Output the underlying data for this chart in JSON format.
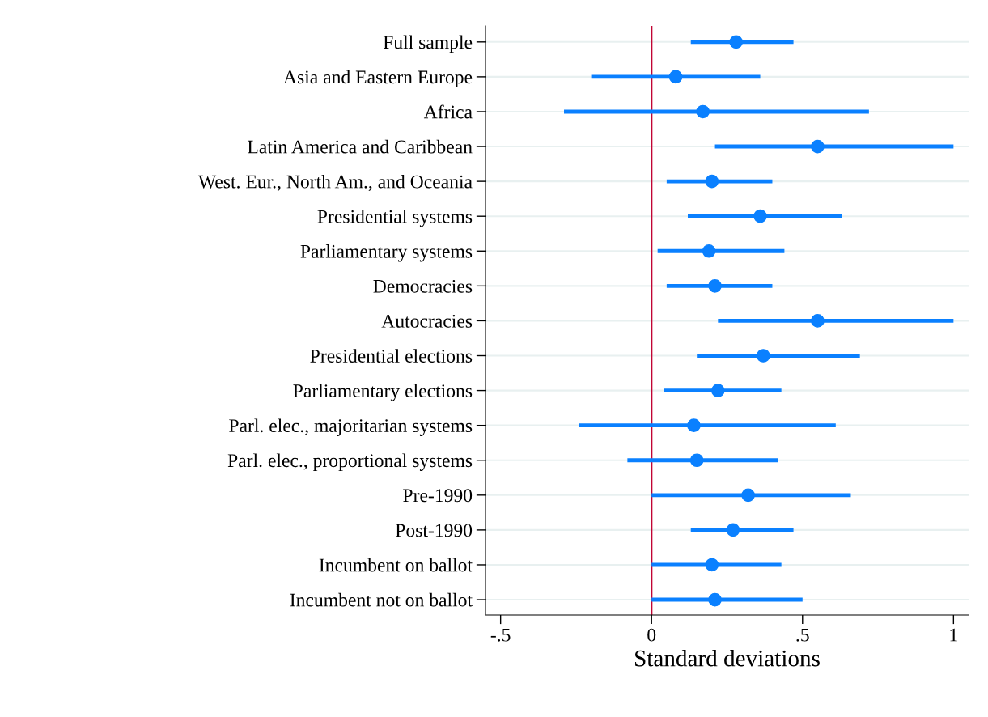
{
  "chart_data": {
    "type": "scatter",
    "orientation": "horizontal",
    "xlabel": "Standard deviations",
    "categories": [
      "Full sample",
      "Asia and Eastern Europe",
      "Africa",
      "Latin America and Caribbean",
      "West. Eur., North Am., and Oceania",
      "Presidential systems",
      "Parliamentary systems",
      "Democracies",
      "Autocracies",
      "Presidential elections",
      "Parliamentary elections",
      "Parl. elec., majoritarian systems",
      "Parl. elec., proportional systems",
      "Pre-1990",
      "Post-1990",
      "Incumbent on ballot",
      "Incumbent not on ballot"
    ],
    "values": [
      0.28,
      0.08,
      0.17,
      0.55,
      0.2,
      0.36,
      0.19,
      0.21,
      0.55,
      0.37,
      0.22,
      0.14,
      0.15,
      0.32,
      0.27,
      0.2,
      0.21
    ],
    "errors": [
      [
        0.13,
        0.47
      ],
      [
        -0.2,
        0.36
      ],
      [
        -0.29,
        0.72
      ],
      [
        0.21,
        1.0
      ],
      [
        0.05,
        0.4
      ],
      [
        0.12,
        0.63
      ],
      [
        0.02,
        0.44
      ],
      [
        0.05,
        0.4
      ],
      [
        0.22,
        1.0
      ],
      [
        0.15,
        0.69
      ],
      [
        0.04,
        0.43
      ],
      [
        -0.24,
        0.61
      ],
      [
        -0.08,
        0.42
      ],
      [
        0.0,
        0.66
      ],
      [
        0.13,
        0.47
      ],
      [
        0.0,
        0.43
      ],
      [
        0.0,
        0.5
      ]
    ],
    "color": "#0a80ff",
    "marker": "circle",
    "xlim": [
      -0.55,
      1.05
    ],
    "xticks": [
      {
        "value": -0.5,
        "label": "-.5"
      },
      0,
      {
        "value": 0.5,
        "label": ".5"
      },
      1
    ],
    "ref_lines": [
      {
        "axis": "x",
        "value": 0,
        "color": "#c10534"
      }
    ],
    "grid": "y",
    "legend": false
  }
}
